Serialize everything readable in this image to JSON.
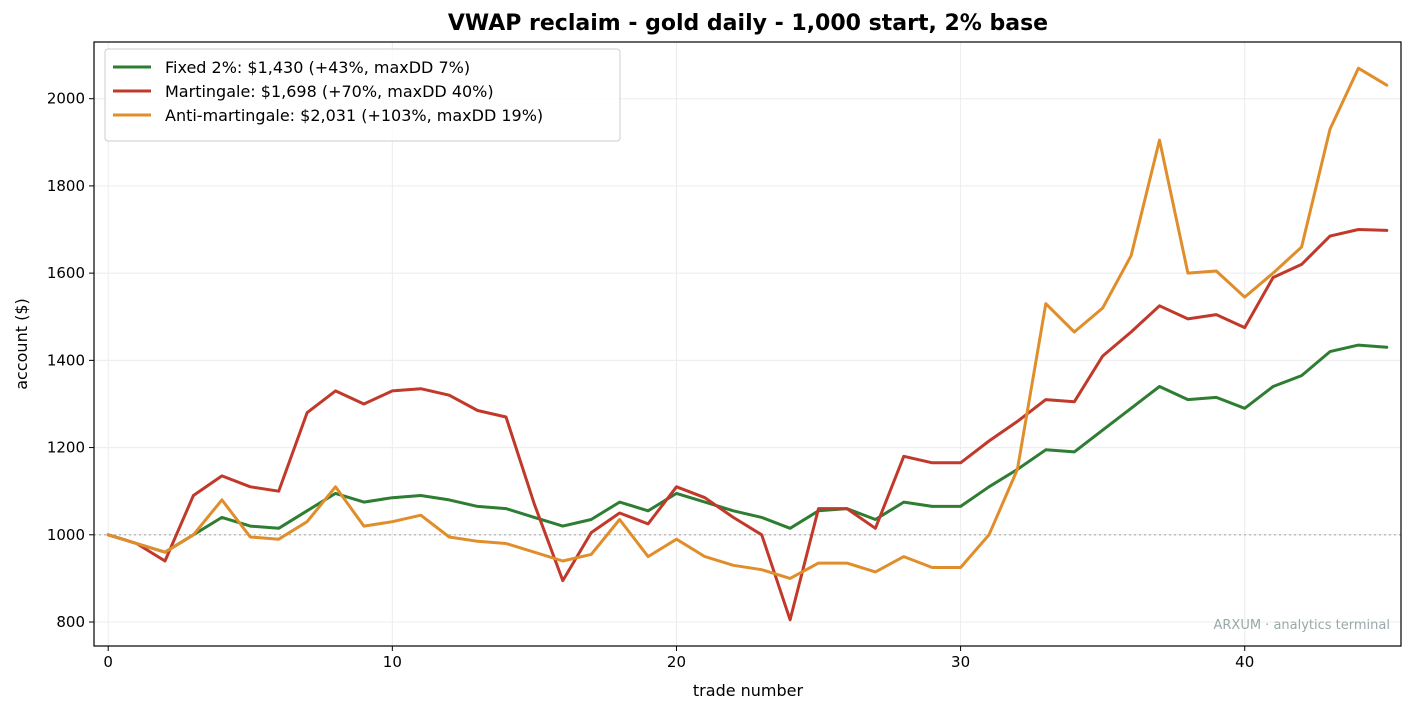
{
  "chart_data": {
    "type": "line",
    "title": "VWAP reclaim - gold daily - 1,000 start, 2% base",
    "xlabel": "trade number",
    "ylabel": "account ($)",
    "xlim": [
      -0.5,
      45.5
    ],
    "ylim": [
      745,
      2130
    ],
    "xticks": [
      0,
      10,
      20,
      30,
      40
    ],
    "yticks": [
      800,
      1000,
      1200,
      1400,
      1600,
      1800,
      2000
    ],
    "grid": true,
    "legend_position": "top-left",
    "reference_line": {
      "y": 1000,
      "style": "dotted",
      "color": "#aaaaaa"
    },
    "watermark": "ARXUM · analytics terminal",
    "x": [
      0,
      1,
      2,
      3,
      4,
      5,
      6,
      7,
      8,
      9,
      10,
      11,
      12,
      13,
      14,
      15,
      16,
      17,
      18,
      19,
      20,
      21,
      22,
      23,
      24,
      25,
      26,
      27,
      28,
      29,
      30,
      31,
      32,
      33,
      34,
      35,
      36,
      37,
      38,
      39,
      40,
      41,
      42,
      43,
      44,
      45
    ],
    "series": [
      {
        "name": "Fixed 2%: $1,430 (+43%, maxDD 7%)",
        "color": "#2e7d32",
        "values": [
          1000,
          980,
          960,
          1000,
          1040,
          1020,
          1015,
          1055,
          1095,
          1075,
          1085,
          1090,
          1080,
          1065,
          1060,
          1040,
          1020,
          1035,
          1075,
          1055,
          1095,
          1075,
          1055,
          1040,
          1015,
          1055,
          1060,
          1035,
          1075,
          1065,
          1065,
          1110,
          1150,
          1195,
          1190,
          1240,
          1290,
          1340,
          1310,
          1315,
          1290,
          1340,
          1365,
          1420,
          1435,
          1430
        ]
      },
      {
        "name": "Martingale: $1,698 (+70%, maxDD 40%)",
        "color": "#c0392b",
        "values": [
          1000,
          980,
          940,
          1090,
          1135,
          1110,
          1100,
          1280,
          1330,
          1300,
          1330,
          1335,
          1320,
          1285,
          1270,
          1070,
          895,
          1005,
          1050,
          1025,
          1110,
          1085,
          1040,
          1000,
          805,
          1060,
          1060,
          1015,
          1180,
          1165,
          1165,
          1215,
          1260,
          1310,
          1305,
          1410,
          1465,
          1525,
          1495,
          1505,
          1475,
          1590,
          1620,
          1685,
          1700,
          1698
        ]
      },
      {
        "name": "Anti-martingale: $2,031 (+103%, maxDD 19%)",
        "color": "#e08e2b",
        "values": [
          1000,
          980,
          960,
          1000,
          1080,
          995,
          990,
          1030,
          1110,
          1020,
          1030,
          1045,
          995,
          985,
          980,
          960,
          940,
          955,
          1035,
          950,
          990,
          950,
          930,
          920,
          900,
          935,
          935,
          915,
          950,
          925,
          925,
          1000,
          1150,
          1530,
          1465,
          1520,
          1640,
          1905,
          1600,
          1605,
          1545,
          1600,
          1660,
          1930,
          2070,
          2031
        ]
      }
    ]
  }
}
